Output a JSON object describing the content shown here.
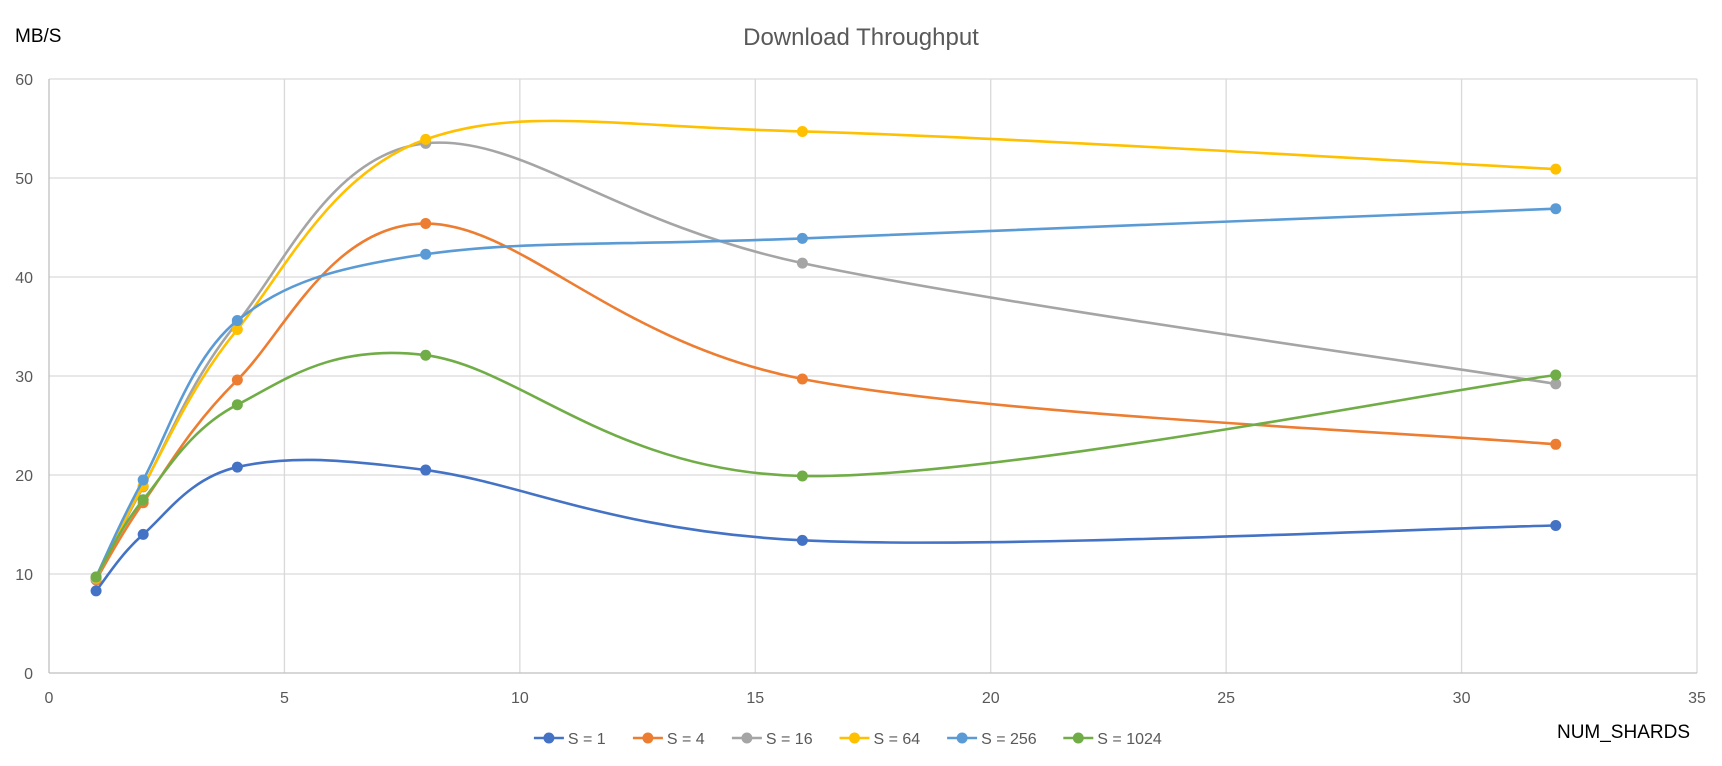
{
  "chart_data": {
    "type": "line",
    "title": "Download Throughput",
    "xlabel": "NUM_SHARDS",
    "ylabel": "MB/S",
    "x": [
      1,
      2,
      4,
      8,
      16,
      32
    ],
    "xlim": [
      0,
      35
    ],
    "ylim": [
      0,
      60
    ],
    "xticks": [
      0,
      5,
      10,
      15,
      20,
      25,
      30,
      35
    ],
    "yticks": [
      0,
      10,
      20,
      30,
      40,
      50,
      60
    ],
    "grid": true,
    "smooth": true,
    "legend_position": "bottom",
    "series": [
      {
        "name": "S = 1",
        "color": "#4472C4",
        "values": [
          8.3,
          14.0,
          20.8,
          20.5,
          13.4,
          14.9
        ]
      },
      {
        "name": "S = 4",
        "color": "#ED7D31",
        "values": [
          9.4,
          17.2,
          29.6,
          45.4,
          29.7,
          23.1
        ]
      },
      {
        "name": "S = 16",
        "color": "#A5A5A5",
        "values": [
          9.5,
          18.8,
          35.4,
          53.5,
          41.4,
          29.2
        ]
      },
      {
        "name": "S = 64",
        "color": "#FFC000",
        "values": [
          9.6,
          18.9,
          34.7,
          53.9,
          54.7,
          50.9
        ]
      },
      {
        "name": "S = 256",
        "color": "#5B9BD5",
        "values": [
          9.7,
          19.5,
          35.6,
          42.3,
          43.9,
          46.9
        ]
      },
      {
        "name": "S = 1024",
        "color": "#70AD47",
        "values": [
          9.7,
          17.5,
          27.1,
          32.1,
          19.9,
          30.1
        ]
      }
    ]
  }
}
